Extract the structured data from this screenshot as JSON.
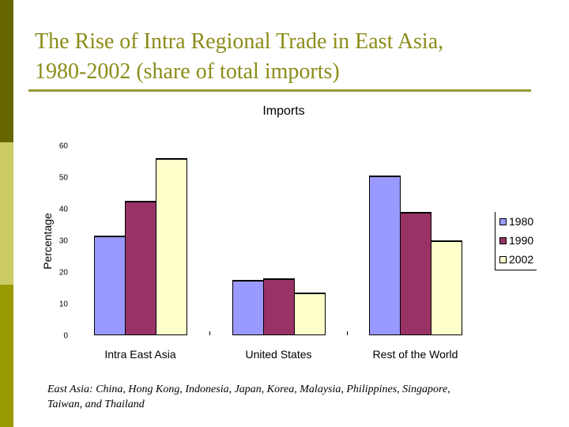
{
  "slide": {
    "title_line1": "The Rise of Intra Regional Trade in East Asia,",
    "title_line2": "1980-2002 (share of total imports)",
    "footnote_line1": "East Asia: China, Hong Kong, Indonesia, Japan, Korea, Malaysia, Philippines, Singapore,",
    "footnote_line2": "Taiwan, and Thailand",
    "colors": {
      "title": "#8C8C1A",
      "side_top": "#666600",
      "side_mid": "#CCCC66",
      "side_bottom": "#999900"
    }
  },
  "chart_data": {
    "type": "bar",
    "title": "Imports",
    "xlabel": "",
    "ylabel": "Percentage",
    "ylim": [
      0,
      60
    ],
    "yticks": [
      0,
      10,
      20,
      30,
      40,
      50,
      60
    ],
    "grid": false,
    "legend_position": "right",
    "categories": [
      "Intra East Asia",
      "United States",
      "Rest of the World"
    ],
    "series": [
      {
        "name": "1980",
        "color": "#9999FF",
        "values": [
          31.5,
          17.5,
          50.5
        ]
      },
      {
        "name": "1990",
        "color": "#993366",
        "values": [
          42.5,
          18,
          39
        ]
      },
      {
        "name": "2002",
        "color": "#FFFFCC",
        "values": [
          56,
          13.5,
          30
        ]
      }
    ]
  }
}
